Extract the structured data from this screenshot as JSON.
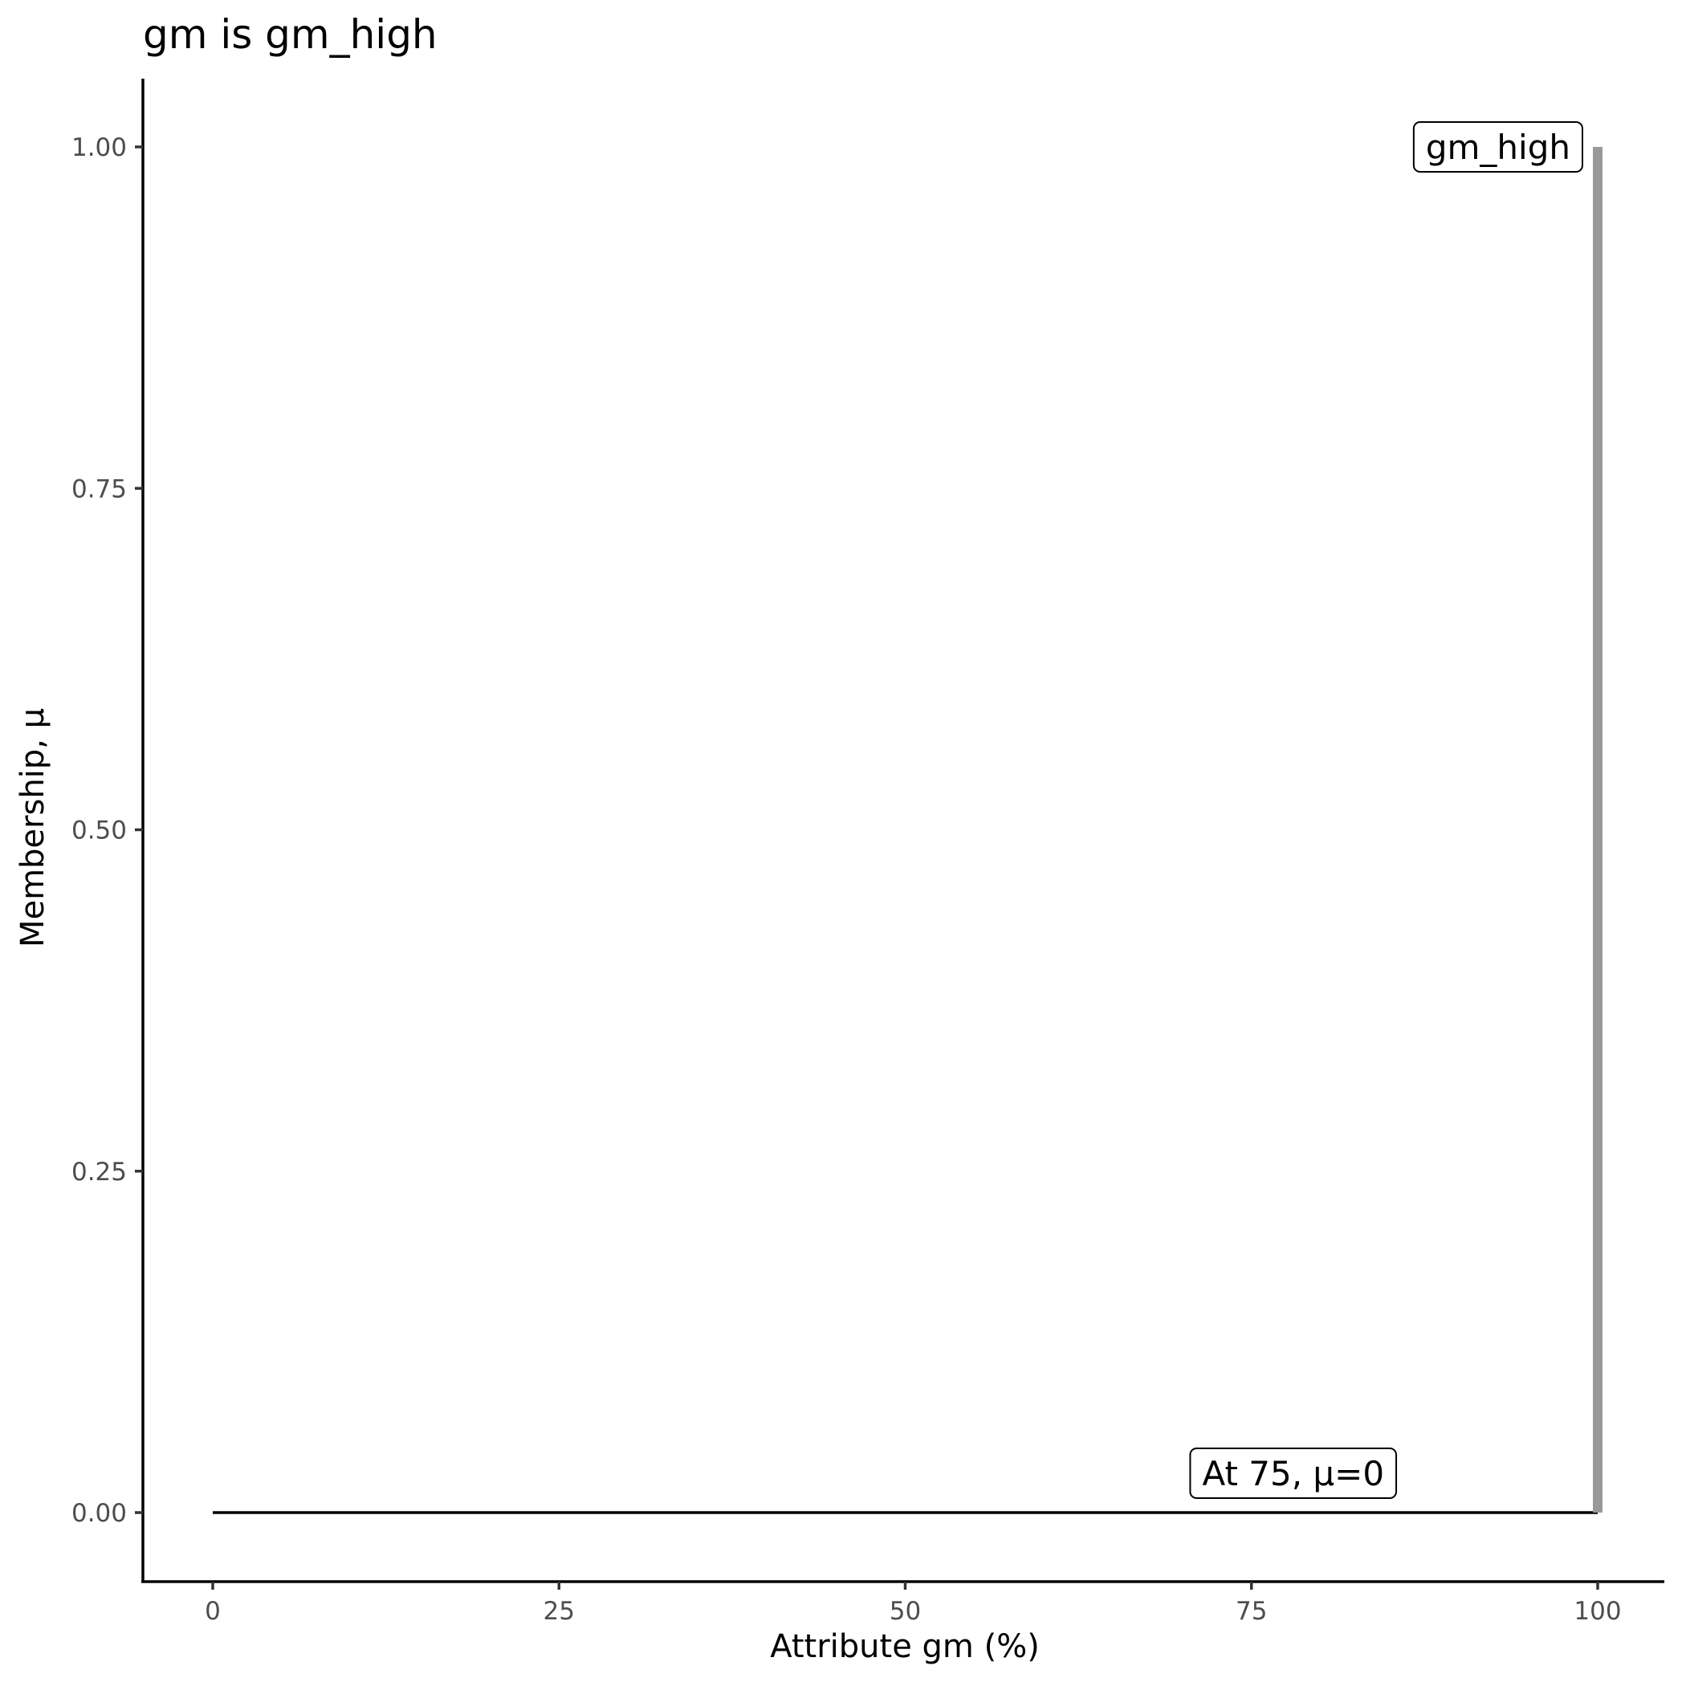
{
  "chart_data": {
    "type": "line",
    "title": "gm is gm_high",
    "xlabel": "Attribute gm (%)",
    "ylabel": "Membership, μ",
    "xlim": [
      -5,
      105
    ],
    "ylim": [
      -0.05,
      1.05
    ],
    "x_ticks": [
      0,
      25,
      50,
      75,
      100
    ],
    "x_tick_labels": [
      "0",
      "25",
      "50",
      "75",
      "100"
    ],
    "y_ticks": [
      0,
      0.25,
      0.5,
      0.75,
      1.0
    ],
    "y_tick_labels": [
      "0.00",
      "0.25",
      "0.50",
      "0.75",
      "1.00"
    ],
    "grid": false,
    "series": [
      {
        "x": [
          0,
          100
        ],
        "y": [
          0,
          0
        ],
        "color": "#000000"
      },
      {
        "x": [
          100,
          100
        ],
        "y": [
          0,
          1
        ],
        "color": "#999999"
      }
    ],
    "annotations": [
      {
        "text": "gm_high",
        "x": 100,
        "y": 1.0,
        "anchor": "right"
      },
      {
        "text": "At 75, μ=0",
        "x": 75,
        "y": 0,
        "anchor": "above"
      }
    ]
  }
}
